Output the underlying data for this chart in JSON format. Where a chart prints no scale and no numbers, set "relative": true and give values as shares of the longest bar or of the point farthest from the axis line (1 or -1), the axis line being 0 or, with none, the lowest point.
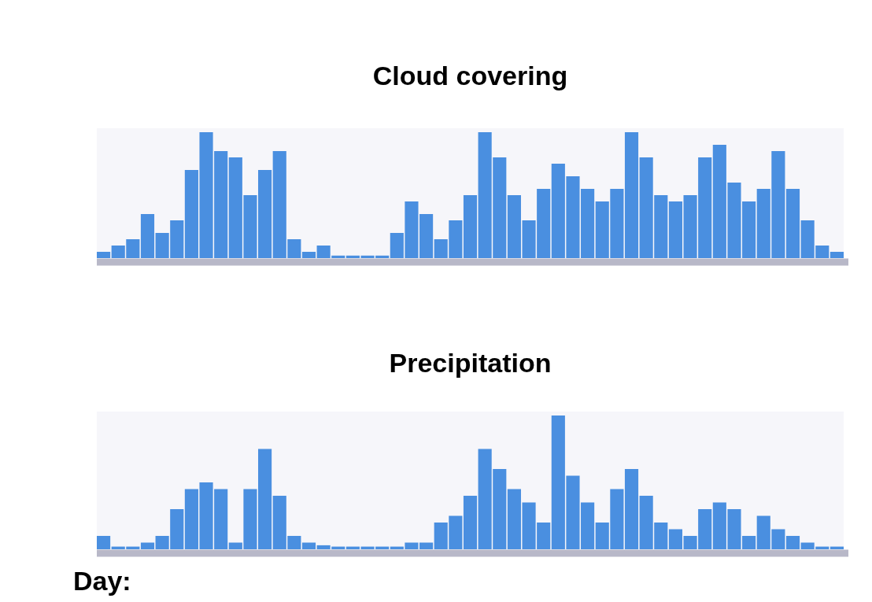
{
  "chart_data": [
    {
      "type": "bar",
      "title": "Cloud covering",
      "relative": true,
      "color": "#4a8fe0",
      "categories": [
        null,
        null,
        null,
        null,
        null,
        null,
        null,
        null,
        null,
        null,
        null,
        null,
        null,
        null,
        null,
        null,
        null,
        null,
        null,
        null,
        null,
        null,
        null,
        null,
        null,
        null,
        null,
        null,
        null,
        null,
        null,
        null,
        null,
        null,
        null,
        null,
        null,
        null,
        null,
        null,
        null,
        null,
        null,
        null,
        null,
        null,
        null,
        null,
        null,
        null,
        null
      ],
      "values": [
        0.05,
        0.1,
        0.15,
        0.35,
        0.2,
        0.3,
        0.7,
        1,
        0.85,
        0.8,
        0.5,
        0.7,
        0.85,
        0.15,
        0.05,
        0.1,
        0.02,
        0.02,
        0.02,
        0.02,
        0.2,
        0.45,
        0.35,
        0.15,
        0.3,
        0.5,
        1,
        0.8,
        0.5,
        0.3,
        0.55,
        0.75,
        0.65,
        0.55,
        0.45,
        0.55,
        1,
        0.8,
        0.5,
        0.45,
        0.5,
        0.8,
        0.9,
        0.6,
        0.45,
        0.55,
        0.85,
        0.55,
        0.3,
        0.1,
        0.05
      ]
    },
    {
      "type": "bar",
      "title": "Precipitation",
      "xlabel": "Day:",
      "relative": true,
      "color": "#4a8fe0",
      "categories": [
        null,
        null,
        null,
        null,
        null,
        null,
        null,
        null,
        null,
        null,
        null,
        null,
        null,
        null,
        null,
        null,
        null,
        null,
        null,
        null,
        null,
        null,
        null,
        null,
        null,
        null,
        null,
        null,
        null,
        null,
        null,
        null,
        null,
        null,
        null,
        null,
        null,
        null,
        null,
        null,
        null,
        null,
        null,
        null,
        null,
        null,
        null,
        null,
        null,
        null,
        null
      ],
      "values": [
        0.1,
        0.02,
        0.02,
        0.05,
        0.1,
        0.3,
        0.45,
        0.5,
        0.45,
        0.05,
        0.45,
        0.75,
        0.4,
        0.1,
        0.05,
        0.03,
        0.02,
        0.02,
        0.02,
        0.02,
        0.02,
        0.05,
        0.05,
        0.2,
        0.25,
        0.4,
        0.75,
        0.6,
        0.45,
        0.35,
        0.2,
        1,
        0.55,
        0.35,
        0.2,
        0.45,
        0.6,
        0.4,
        0.2,
        0.15,
        0.1,
        0.3,
        0.35,
        0.3,
        0.1,
        0.25,
        0.15,
        0.1,
        0.05,
        0.02,
        0.02
      ]
    }
  ]
}
